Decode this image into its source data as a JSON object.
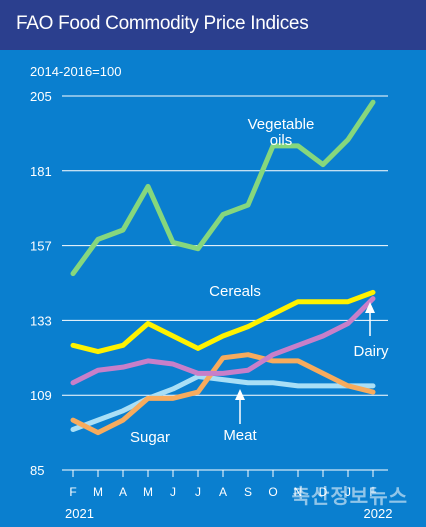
{
  "chart_data": {
    "type": "line",
    "title": "FAO Food Commodity Price Indices",
    "unit_note": "2014-2016=100",
    "categories": [
      "F",
      "M",
      "A",
      "M",
      "J",
      "J",
      "A",
      "S",
      "O",
      "N",
      "D",
      "J",
      "F"
    ],
    "year_labels": [
      "2021",
      "2022"
    ],
    "ylim": [
      85,
      205
    ],
    "yticks": [
      85,
      109,
      133,
      157,
      181,
      205
    ],
    "grid": true,
    "series": [
      {
        "name": "Vegetable oils",
        "label_lines": [
          "Vegetable",
          "oils"
        ],
        "color": "#86d77d",
        "values": [
          148,
          159,
          162,
          176,
          158,
          156,
          167,
          170,
          189,
          189,
          183,
          191,
          203
        ]
      },
      {
        "name": "Cereals",
        "label_lines": [
          "Cereals"
        ],
        "color": "#fff200",
        "values": [
          125,
          123,
          125,
          132,
          128,
          124,
          128,
          131,
          135,
          139,
          139,
          139,
          142
        ]
      },
      {
        "name": "Dairy",
        "label_lines": [
          "Dairy"
        ],
        "color": "#c87fc9",
        "values": [
          113,
          117,
          118,
          120,
          119,
          116,
          116,
          117,
          122,
          125,
          128,
          132,
          140
        ]
      },
      {
        "name": "Sugar",
        "label_lines": [
          "Sugar"
        ],
        "color": "#f7ab5d",
        "values": [
          101,
          97,
          101,
          108,
          108,
          110,
          121,
          122,
          120,
          120,
          116,
          112,
          110
        ]
      },
      {
        "name": "Meat",
        "label_lines": [
          "Meat"
        ],
        "color": "#a9dff6",
        "values": [
          98,
          101,
          104,
          108,
          111,
          115,
          114,
          113,
          113,
          112,
          112,
          112,
          112
        ]
      }
    ]
  },
  "watermark": "축산정보뉴스"
}
